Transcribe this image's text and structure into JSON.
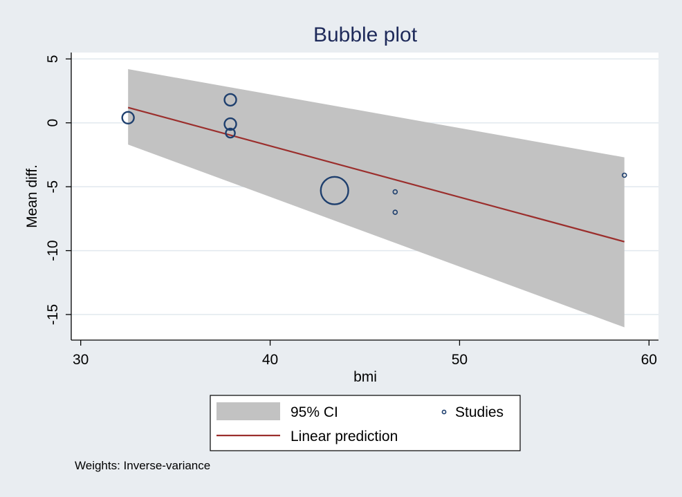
{
  "chart_data": {
    "type": "scatter",
    "title": "Bubble plot",
    "xlabel": "bmi",
    "ylabel": "Mean diff.",
    "xlim": [
      29.5,
      60.5
    ],
    "ylim": [
      -17,
      5.5
    ],
    "xticks": [
      30,
      40,
      50,
      60
    ],
    "yticks": [
      5,
      0,
      -5,
      -10,
      -15
    ],
    "grid": true,
    "ci_band": {
      "name": "95% CI",
      "x": [
        32.5,
        58.7
      ],
      "upper": [
        4.2,
        -2.7
      ],
      "lower": [
        -1.7,
        -16.0
      ],
      "color": "#c2c2c2"
    },
    "linear_prediction": {
      "name": "Linear prediction",
      "x": [
        32.5,
        58.7
      ],
      "y": [
        1.2,
        -9.3
      ],
      "color": "#9b2e2c"
    },
    "studies": {
      "name": "Studies",
      "color": "#1e3f6e",
      "points": [
        {
          "x": 32.5,
          "y": 0.4,
          "weight": 2
        },
        {
          "x": 37.9,
          "y": 1.8,
          "weight": 2
        },
        {
          "x": 37.9,
          "y": -0.1,
          "weight": 2
        },
        {
          "x": 37.9,
          "y": -0.8,
          "weight": 1.2
        },
        {
          "x": 43.4,
          "y": -5.3,
          "weight": 11
        },
        {
          "x": 46.6,
          "y": -5.4,
          "weight": 0.25
        },
        {
          "x": 46.6,
          "y": -7.0,
          "weight": 0.25
        },
        {
          "x": 58.7,
          "y": -4.1,
          "weight": 0.25
        }
      ]
    },
    "legend": {
      "placement": "bottom",
      "items": [
        {
          "key": "ci",
          "label": "95% CI"
        },
        {
          "key": "studies",
          "label": "Studies"
        },
        {
          "key": "line",
          "label": "Linear prediction"
        }
      ]
    },
    "note": "Weights: Inverse-variance",
    "colors": {
      "background": "#e9edf1",
      "plot": "#ffffff",
      "grid": "#e1e8ee",
      "axis": "#000000",
      "title": "#1e2a5a"
    }
  }
}
